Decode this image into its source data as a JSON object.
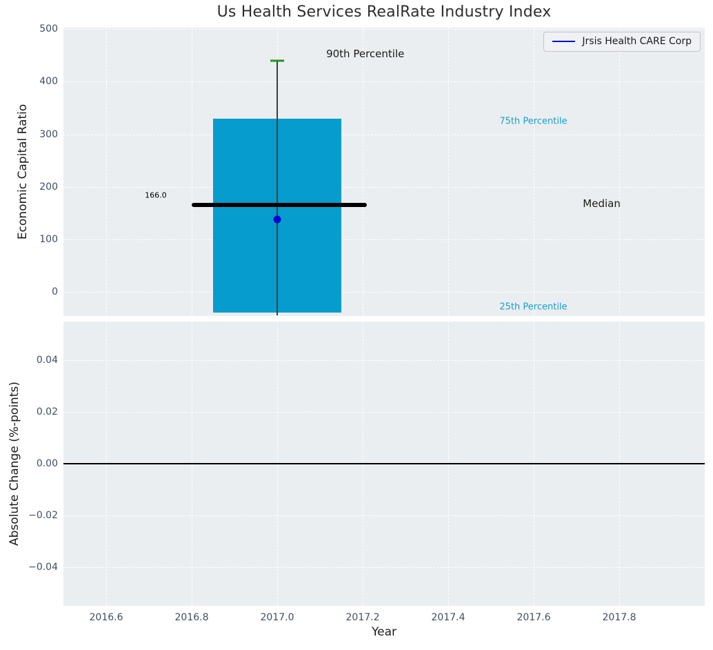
{
  "chart_data": [
    {
      "type": "bar",
      "title": "Us Health Services RealRate Industry Index",
      "ylabel": "Economic Capital Ratio",
      "xlim": [
        2016.5,
        2018.0
      ],
      "ylim": [
        -46,
        503
      ],
      "grid": true,
      "x_ticks": [
        2016.6,
        2016.8,
        2017.0,
        2017.2,
        2017.4,
        2017.6,
        2017.8
      ],
      "y_ticks": [
        0,
        100,
        200,
        300,
        400,
        500
      ],
      "y_tick_labels": [
        "0",
        "100",
        "200",
        "300",
        "400",
        "500"
      ],
      "legend": {
        "position": "upper right",
        "entries": [
          {
            "label": "Jrsis Health CARE Corp",
            "color": "#0000cc"
          }
        ]
      },
      "industry_distribution": {
        "year": 2017.0,
        "percentile_90": 440,
        "percentile_75": 330,
        "median": 166.0,
        "percentile_25": -39,
        "whisker_low": -45,
        "bar_x_range": [
          2016.85,
          2017.15
        ],
        "median_x_range": [
          2016.8,
          2017.21
        ],
        "cap_x_range": [
          2016.984,
          2017.016
        ]
      },
      "company_point": {
        "series": "Jrsis Health CARE Corp",
        "x": 2017.0,
        "y": 138
      },
      "annotations": [
        {
          "name": "median-value-label",
          "text": "166.0",
          "x": 2016.716,
          "y": 184,
          "size": 11,
          "color": "#000000",
          "ha": "center"
        },
        {
          "name": "p90-label",
          "text": "90th Percentile",
          "x": 2017.206,
          "y": 453,
          "size": 15,
          "color": "#1a1a1a",
          "ha": "center"
        },
        {
          "name": "p75-label",
          "text": "75th Percentile",
          "x": 2017.52,
          "y": 325,
          "size": 13,
          "color": "#18a0ce",
          "ha": "left"
        },
        {
          "name": "median-label",
          "text": "Median",
          "x": 2017.715,
          "y": 168,
          "size": 15,
          "color": "#1a1a1a",
          "ha": "left"
        },
        {
          "name": "p25-label",
          "text": "25th Percentile",
          "x": 2017.52,
          "y": -29,
          "size": 13,
          "color": "#18a0ce",
          "ha": "left"
        }
      ],
      "colors": {
        "bar": "#069ccd",
        "whisker": "#3d3d3d",
        "cap": "#1e961e",
        "median_line": "#000000",
        "company_dot": "#0000d4",
        "axes_background": "#ebeef0",
        "grid": "#ffffff"
      }
    },
    {
      "type": "line",
      "ylabel": "Absolute Change (%-points)",
      "xlabel": "Year",
      "xlim": [
        2016.5,
        2018.0
      ],
      "ylim": [
        -0.055,
        0.055
      ],
      "grid": true,
      "x_ticks": [
        2016.6,
        2016.8,
        2017.0,
        2017.2,
        2017.4,
        2017.6,
        2017.8
      ],
      "x_tick_labels": [
        "2016.6",
        "2016.8",
        "2017.0",
        "2017.2",
        "2017.4",
        "2017.6",
        "2017.8"
      ],
      "y_ticks": [
        0.04,
        0.02,
        0.0,
        -0.02,
        -0.04
      ],
      "y_tick_labels": [
        "0.04",
        "0.02",
        "0.00",
        "−0.02",
        "−0.04"
      ],
      "zero_line": 0.0
    }
  ]
}
